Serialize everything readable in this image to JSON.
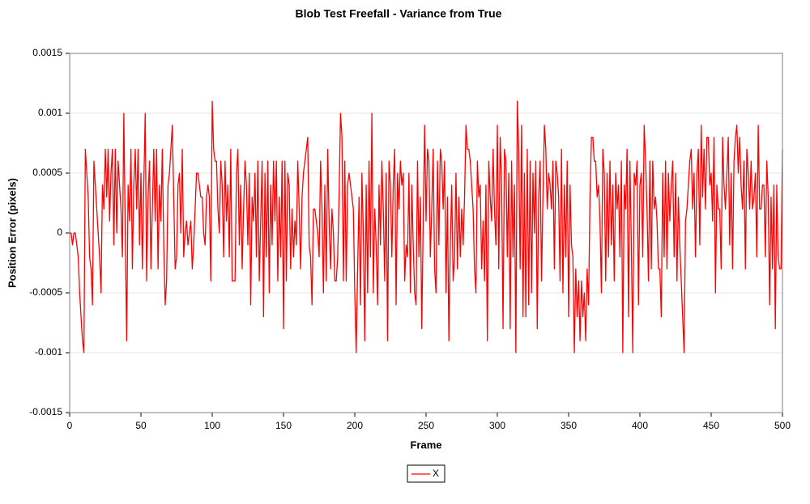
{
  "chart_data": {
    "type": "line",
    "title": "Blob Test Freefall - Variance from True",
    "x_label": "Frame",
    "y_label": "Position Error (pixels)",
    "xlim": [
      0,
      500
    ],
    "xticks": [
      0,
      50,
      100,
      150,
      200,
      250,
      300,
      350,
      400,
      450,
      500
    ],
    "ylim": [
      -0.0015,
      0.0015
    ],
    "yticks": [
      -0.0015,
      -0.001,
      -0.0005,
      0,
      0.0005,
      0.001,
      0.0015
    ],
    "grid": true,
    "legend": "bottom",
    "x": [
      0,
      1,
      2,
      3,
      4,
      5,
      6,
      7,
      8,
      9,
      10,
      11,
      12,
      13,
      14,
      15,
      16,
      17,
      18,
      19,
      20,
      21,
      22,
      23,
      24,
      25,
      26,
      27,
      28,
      29,
      30,
      31,
      32,
      33,
      34,
      35,
      36,
      37,
      38,
      39,
      40,
      41,
      42,
      43,
      44,
      45,
      46,
      47,
      48,
      49,
      50,
      51,
      52,
      53,
      54,
      55,
      56,
      57,
      58,
      59,
      60,
      61,
      62,
      63,
      64,
      65,
      66,
      67,
      68,
      69,
      70,
      71,
      72,
      73,
      74,
      75,
      76,
      77,
      78,
      79,
      80,
      81,
      82,
      83,
      84,
      85,
      86,
      87,
      88,
      89,
      90,
      91,
      92,
      93,
      94,
      95,
      96,
      97,
      98,
      99,
      100,
      101,
      102,
      103,
      104,
      105,
      106,
      107,
      108,
      109,
      110,
      111,
      112,
      113,
      114,
      115,
      116,
      117,
      118,
      119,
      120,
      121,
      122,
      123,
      124,
      125,
      126,
      127,
      128,
      129,
      130,
      131,
      132,
      133,
      134,
      135,
      136,
      137,
      138,
      139,
      140,
      141,
      142,
      143,
      144,
      145,
      146,
      147,
      148,
      149,
      150,
      151,
      152,
      153,
      154,
      155,
      156,
      157,
      158,
      159,
      160,
      161,
      162,
      163,
      164,
      165,
      166,
      167,
      168,
      169,
      170,
      171,
      172,
      173,
      174,
      175,
      176,
      177,
      178,
      179,
      180,
      181,
      182,
      183,
      184,
      185,
      186,
      187,
      188,
      189,
      190,
      191,
      192,
      193,
      194,
      195,
      196,
      197,
      198,
      199,
      200,
      201,
      202,
      203,
      204,
      205,
      206,
      207,
      208,
      209,
      210,
      211,
      212,
      213,
      214,
      215,
      216,
      217,
      218,
      219,
      220,
      221,
      222,
      223,
      224,
      225,
      226,
      227,
      228,
      229,
      230,
      231,
      232,
      233,
      234,
      235,
      236,
      237,
      238,
      239,
      240,
      241,
      242,
      243,
      244,
      245,
      246,
      247,
      248,
      249,
      250,
      251,
      252,
      253,
      254,
      255,
      256,
      257,
      258,
      259,
      260,
      261,
      262,
      263,
      264,
      265,
      266,
      267,
      268,
      269,
      270,
      271,
      272,
      273,
      274,
      275,
      276,
      277,
      278,
      279,
      280,
      281,
      282,
      283,
      284,
      285,
      286,
      287,
      288,
      289,
      290,
      291,
      292,
      293,
      294,
      295,
      296,
      297,
      298,
      299,
      300,
      301,
      302,
      303,
      304,
      305,
      306,
      307,
      308,
      309,
      310,
      311,
      312,
      313,
      314,
      315,
      316,
      317,
      318,
      319,
      320,
      321,
      322,
      323,
      324,
      325,
      326,
      327,
      328,
      329,
      330,
      331,
      332,
      333,
      334,
      335,
      336,
      337,
      338,
      339,
      340,
      341,
      342,
      343,
      344,
      345,
      346,
      347,
      348,
      349,
      350,
      351,
      352,
      353,
      354,
      355,
      356,
      357,
      358,
      359,
      360,
      361,
      362,
      363,
      364,
      365,
      366,
      367,
      368,
      369,
      370,
      371,
      372,
      373,
      374,
      375,
      376,
      377,
      378,
      379,
      380,
      381,
      382,
      383,
      384,
      385,
      386,
      387,
      388,
      389,
      390,
      391,
      392,
      393,
      394,
      395,
      396,
      397,
      398,
      399,
      400,
      401,
      402,
      403,
      404,
      405,
      406,
      407,
      408,
      409,
      410,
      411,
      412,
      413,
      414,
      415,
      416,
      417,
      418,
      419,
      420,
      421,
      422,
      423,
      424,
      425,
      426,
      427,
      428,
      429,
      430,
      431,
      432,
      433,
      434,
      435,
      436,
      437,
      438,
      439,
      440,
      441,
      442,
      443,
      444,
      445,
      446,
      447,
      448,
      449,
      450,
      451,
      452,
      453,
      454,
      455,
      456,
      457,
      458,
      459,
      460,
      461,
      462,
      463,
      464,
      465,
      466,
      467,
      468,
      469,
      470,
      471,
      472,
      473,
      474,
      475,
      476,
      477,
      478,
      479,
      480,
      481,
      482,
      483,
      484,
      485,
      486,
      487,
      488,
      489,
      490,
      491,
      492,
      493,
      494,
      495,
      496,
      497,
      498,
      499,
      500
    ],
    "series": [
      {
        "name": "X",
        "color": "#ff0000",
        "values": [
          0,
          0,
          -0.0001,
          0,
          0,
          -0.0001,
          -0.0002,
          -0.0005,
          -0.0007,
          -0.0009,
          -0.001,
          0.0007,
          0.0005,
          0.0003,
          -0.0002,
          -0.0003,
          -0.0006,
          0.0006,
          0.0004,
          0.0002,
          0,
          -0.0002,
          -0.0005,
          0.0004,
          0.0002,
          0.0007,
          0.0003,
          0.0007,
          0.0001,
          0.0005,
          0.0007,
          -0.0001,
          0.0007,
          0,
          0.0006,
          0.0004,
          0.0002,
          -0.0002,
          0.001,
          0,
          -0.0009,
          0.0004,
          0.0001,
          0.0007,
          -0.0003,
          0.0004,
          0.0007,
          0.0002,
          0.0007,
          -0.0001,
          0.0005,
          -0.0003,
          0.0004,
          0.001,
          -0.0004,
          0.0003,
          0.0006,
          -0.0003,
          0.0002,
          0.0007,
          0.0001,
          0.0007,
          -0.0003,
          0.0004,
          0.0001,
          0.0007,
          -0.0001,
          -0.0006,
          -0.0004,
          0.0004,
          0.0005,
          0.0007,
          0.0009,
          0.0003,
          -0.0003,
          -0.0002,
          0.0004,
          0.0005,
          0,
          0.0007,
          -0.0002,
          0,
          0.0001,
          -0.0001,
          0,
          0.0001,
          -0.0003,
          -0.0001,
          0.0002,
          0.0005,
          0.0005,
          0.0004,
          0.0003,
          0.0003,
          0,
          -0.0001,
          0.0003,
          0.0004,
          0.0003,
          -0.0004,
          0.0011,
          0.0007,
          0.0006,
          0.0006,
          0.0002,
          0,
          0.0006,
          0.0004,
          -0.0002,
          0.0006,
          0.0001,
          0.0004,
          -0.0002,
          0.0007,
          -0.0004,
          -0.0004,
          -0.0004,
          0.0005,
          0.0007,
          -0.0001,
          0.0004,
          -0.0003,
          0.0002,
          0.0006,
          0.0004,
          -0.0001,
          0.0005,
          -0.0006,
          0.0003,
          0.0001,
          0.0005,
          -0.0002,
          0.0006,
          -0.0004,
          0.0001,
          0.0006,
          -0.0007,
          0.0005,
          -0.0002,
          0.0006,
          -0.0005,
          0.0004,
          -0.0001,
          0.0006,
          0.0001,
          0.0006,
          -0.0004,
          0.0003,
          -0.0002,
          0.0006,
          -0.0008,
          0.0006,
          -0.0004,
          0.0005,
          0.0004,
          -0.0003,
          0.0002,
          -0.0002,
          0.0001,
          -0.0001,
          0.0006,
          0.0002,
          -0.0003,
          0.0003,
          0.0005,
          0.0006,
          0.0007,
          0.0008,
          -0.0001,
          -0.0002,
          -0.0006,
          0.0002,
          0.0002,
          0.0001,
          0,
          -0.0002,
          0.0006,
          0.0002,
          -0.0005,
          0.0004,
          -0.0004,
          0.0007,
          0.0001,
          -0.0003,
          0.0002,
          0,
          -0.0004,
          -0.0004,
          -0.0002,
          0.0003,
          0.001,
          0.0008,
          -0.0004,
          0.0006,
          -0.0004,
          0.0004,
          0.0005,
          0.0004,
          0.0003,
          0.0002,
          -0.0005,
          -0.001,
          -0.0003,
          0.0003,
          -0.0006,
          0.0005,
          0,
          -0.0009,
          0.0004,
          -0.0005,
          0.0006,
          -0.0002,
          0.001,
          -0.0005,
          0.0002,
          -0.0001,
          -0.0006,
          0.0004,
          -0.0001,
          0.0006,
          0.0002,
          -0.0004,
          0.0005,
          -0.0009,
          0.0006,
          0.0004,
          -0.0002,
          0.0004,
          0.0007,
          -0.0006,
          0.0005,
          0.0002,
          0.0006,
          0.0004,
          0.0005,
          -0.0004,
          -0.0001,
          -0.0002,
          0.0005,
          -0.0005,
          0.0004,
          -0.0001,
          -0.0005,
          -0.0006,
          0.0006,
          -0.0002,
          0.0003,
          -0.0008,
          0.0001,
          0.0009,
          0.0001,
          0.0007,
          0.0006,
          -0.0002,
          0.0002,
          0.0007,
          -0.0003,
          -0.0005,
          0.0006,
          -0.0001,
          0.0007,
          0.0006,
          0.0002,
          0.0006,
          -0.0005,
          0.0003,
          -0.0009,
          -0.0001,
          0.0004,
          -0.0004,
          -0.0002,
          0.0005,
          -0.0003,
          0.0003,
          -0.0002,
          0.0002,
          -0.0001,
          0.0003,
          0.0009,
          0.0007,
          0.0007,
          0.0006,
          0.0004,
          0.0002,
          -0.0003,
          -0.0005,
          0.0006,
          0.0003,
          0.0004,
          -0.0003,
          0.0001,
          -0.0004,
          0.0004,
          -0.0009,
          0.0006,
          0.0003,
          0.0001,
          0.0007,
          0.0002,
          -0.0001,
          0.0009,
          -0.0003,
          0.0008,
          0.0004,
          -0.0008,
          0.0007,
          0.0006,
          -0.0002,
          0.0005,
          -0.0008,
          0.0006,
          -0.0002,
          0.0004,
          -0.001,
          0.0011,
          0.0007,
          -0.0003,
          0.0009,
          -0.0007,
          0.0005,
          -0.0007,
          0.0007,
          -0.0006,
          0.0006,
          -0.0005,
          0.0005,
          0,
          0.0006,
          -0.0008,
          0.0003,
          0.0006,
          -0.0004,
          0.0003,
          0.0009,
          0.0007,
          0.0002,
          0.0005,
          0.0004,
          0.0002,
          0.0006,
          -0.0003,
          0.0006,
          0.0005,
          0.0003,
          -0.0004,
          0.0007,
          -0.0005,
          0.0004,
          -0.0002,
          0.0006,
          -0.0007,
          0.0004,
          -0.0001,
          -0.0002,
          -0.001,
          -0.0003,
          -0.0007,
          -0.0004,
          -0.0009,
          -0.0004,
          -0.0007,
          -0.0005,
          -0.0009,
          -0.0003,
          -0.0006,
          0.0003,
          0.0008,
          0.0008,
          0.0006,
          0.0006,
          0.0003,
          0.0004,
          0.0001,
          -0.0005,
          0.0007,
          0.0005,
          -0.0004,
          0.0005,
          -0.0002,
          0.0006,
          -0.0001,
          0.0004,
          -0.0004,
          0.0005,
          0.0002,
          0.0004,
          -0.0002,
          0.0006,
          -0.001,
          0.0004,
          0.0002,
          0.0007,
          -0.0007,
          0.0006,
          -0.0001,
          -0.001,
          0.0005,
          0.0004,
          0.0006,
          -0.0006,
          0.0004,
          0.0005,
          -0.0002,
          0.0009,
          0.0006,
          0.0002,
          -0.0004,
          0.0006,
          -0.0003,
          0.0006,
          0.0002,
          0.0003,
          0.0001,
          -0.0003,
          -0.0003,
          -0.0007,
          0.0005,
          -0.0002,
          0.0006,
          -0.0003,
          0.0005,
          0.0001,
          0.0004,
          0.0006,
          -0.0002,
          0.0005,
          -0.0004,
          0.0003,
          -0.0001,
          -0.0004,
          -0.0007,
          -0.001,
          0.0001,
          0.0002,
          0.0004,
          0.0006,
          0.0007,
          0.0002,
          0.0005,
          -0.0002,
          0.0005,
          0.0007,
          -0.0001,
          0.0009,
          0.0003,
          0.0007,
          0.0002,
          0.0008,
          0.0008,
          0.0004,
          0.0005,
          0.0001,
          0.0008,
          -0.0005,
          0.0004,
          0.0002,
          0.0002,
          -0.0003,
          0.0008,
          0.0004,
          0.0002,
          0.0005,
          0.0008,
          -0.0001,
          0.0005,
          -0.0003,
          0.0006,
          0.0008,
          0.0009,
          0.0005,
          0.0008,
          0.0004,
          0.0002,
          0.0006,
          -0.0003,
          0.0007,
          0.0005,
          0.0002,
          0.0006,
          0.0002,
          0.0003,
          0.0005,
          -0.0002,
          0.0009,
          0.0002,
          0.0002,
          0.0004,
          0.0004,
          -0.0002,
          0.0006,
          0.0003,
          -0.0006,
          0.0003,
          -0.0003,
          0.0004,
          -0.0008,
          0.0004,
          -0.0002,
          -0.0003,
          -0.0003,
          0.0007
        ]
      }
    ]
  }
}
